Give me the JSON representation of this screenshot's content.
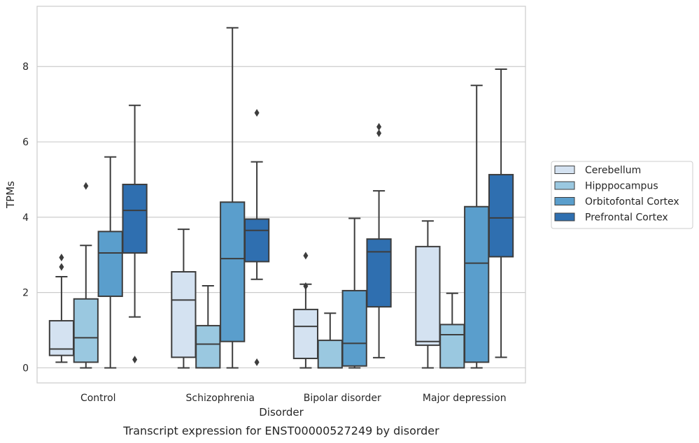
{
  "chart_data": {
    "type": "box",
    "title": "",
    "caption": "Transcript expression for ENST00000527249 by disorder",
    "xlabel": "Disorder",
    "ylabel": "TPMs",
    "ylim": [
      -0.4,
      9.6
    ],
    "yticks": [
      0,
      2,
      4,
      6,
      8
    ],
    "grid": "horizontal",
    "legend_position": "right",
    "categories": [
      "Control",
      "Schizophrenia",
      "Bipolar disorder",
      "Major depression"
    ],
    "series": [
      {
        "name": "Cerebellum",
        "color": "#d4e2f1",
        "boxes": [
          {
            "whislo": 0.15,
            "q1": 0.33,
            "med": 0.5,
            "q3": 1.25,
            "whishi": 2.42,
            "fliers": [
              2.68,
              2.93
            ]
          },
          {
            "whislo": 0.0,
            "q1": 0.28,
            "med": 1.8,
            "q3": 2.55,
            "whishi": 3.68,
            "fliers": []
          },
          {
            "whislo": 0.0,
            "q1": 0.25,
            "med": 1.1,
            "q3": 1.55,
            "whishi": 2.22,
            "fliers": [
              2.17,
              2.98
            ]
          },
          {
            "whislo": 0.0,
            "q1": 0.6,
            "med": 0.7,
            "q3": 3.22,
            "whishi": 3.9,
            "fliers": []
          }
        ]
      },
      {
        "name": "Hipppocampus",
        "color": "#9ac8e0",
        "boxes": [
          {
            "whislo": 0.0,
            "q1": 0.15,
            "med": 0.8,
            "q3": 1.83,
            "whishi": 3.25,
            "fliers": [
              4.83
            ]
          },
          {
            "whislo": 0.0,
            "q1": 0.0,
            "med": 0.63,
            "q3": 1.12,
            "whishi": 2.18,
            "fliers": []
          },
          {
            "whislo": 0.0,
            "q1": 0.0,
            "med": 0.0,
            "q3": 0.73,
            "whishi": 1.45,
            "fliers": []
          },
          {
            "whislo": 0.0,
            "q1": 0.0,
            "med": 0.88,
            "q3": 1.15,
            "whishi": 1.98,
            "fliers": []
          }
        ]
      },
      {
        "name": "Orbitofontal Cortex",
        "color": "#5a9ecc",
        "boxes": [
          {
            "whislo": 0.0,
            "q1": 1.9,
            "med": 3.05,
            "q3": 3.62,
            "whishi": 5.6,
            "fliers": []
          },
          {
            "whislo": 0.0,
            "q1": 0.7,
            "med": 2.9,
            "q3": 4.4,
            "whishi": 9.03,
            "fliers": []
          },
          {
            "whislo": 0.0,
            "q1": 0.05,
            "med": 0.65,
            "q3": 2.05,
            "whishi": 3.97,
            "fliers": []
          },
          {
            "whislo": 0.0,
            "q1": 0.15,
            "med": 2.78,
            "q3": 4.28,
            "whishi": 7.5,
            "fliers": []
          }
        ]
      },
      {
        "name": "Prefrontal Cortex",
        "color": "#2f6fb0",
        "boxes": [
          {
            "whislo": 1.35,
            "q1": 3.05,
            "med": 4.18,
            "q3": 4.87,
            "whishi": 6.97,
            "fliers": [
              0.22
            ]
          },
          {
            "whislo": 2.35,
            "q1": 2.82,
            "med": 3.65,
            "q3": 3.95,
            "whishi": 5.47,
            "fliers": [
              0.15,
              6.77
            ]
          },
          {
            "whislo": 0.27,
            "q1": 1.62,
            "med": 3.08,
            "q3": 3.42,
            "whishi": 4.7,
            "fliers": [
              6.23,
              6.4
            ]
          },
          {
            "whislo": 0.28,
            "q1": 2.95,
            "med": 3.98,
            "q3": 5.13,
            "whishi": 7.93,
            "fliers": []
          }
        ]
      }
    ]
  }
}
